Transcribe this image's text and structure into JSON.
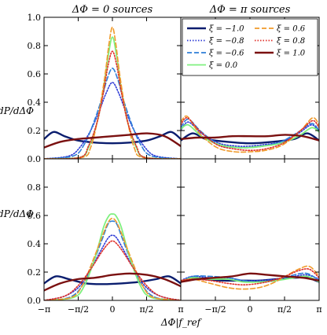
{
  "figure": {
    "titles": [
      "ΔΦ = 0 sources",
      "ΔΦ = π sources"
    ],
    "ylabel": "dP/dΔΦ",
    "xlabel": "ΔΦ|f_ref"
  },
  "chart_data": {
    "type": "line",
    "grid": false,
    "legend_placement": "top-right panel, upper area",
    "xlim": [
      -3.1416,
      3.1416
    ],
    "ylim": [
      0,
      1.0
    ],
    "x_ticks": [
      -3.1416,
      -1.5708,
      0,
      1.5708,
      3.1416
    ],
    "x_tick_labels": [
      "−π",
      "−π/2",
      "0",
      "π/2",
      "π"
    ],
    "y_ticks": [
      0,
      0.2,
      0.4,
      0.6,
      0.8,
      1.0
    ],
    "y_tick_labels_top": [
      "0.0",
      "0.2",
      "0.4",
      "0.6",
      "0.8",
      "1.0"
    ],
    "y_tick_labels_bottom": [
      "0.0",
      "0.2",
      "0.4",
      "0.6",
      "0.8"
    ],
    "legend": [
      {
        "label": "ξ = −1.0",
        "color": "#0a1d6e",
        "style": "solid"
      },
      {
        "label": "ξ = −0.8",
        "color": "#2f3cd6",
        "style": "dotted"
      },
      {
        "label": "ξ = −0.6",
        "color": "#2f7fd8",
        "style": "dashed"
      },
      {
        "label": "ξ = 0.0",
        "color": "#7ff07f",
        "style": "solid"
      },
      {
        "label": "ξ = 0.6",
        "color": "#f09a2a",
        "style": "dashed"
      },
      {
        "label": "ξ = 0.8",
        "color": "#e0302a",
        "style": "dotted"
      },
      {
        "label": "ξ = 1.0",
        "color": "#7a1010",
        "style": "solid"
      }
    ],
    "panels": [
      {
        "name": "top-left",
        "title_index": 0,
        "series": [
          {
            "color": "#0a1d6e",
            "style": "solid",
            "width": 2.4,
            "x": [
              -3.14,
              -2.7,
              -2.2,
              -1.6,
              -0.8,
              0,
              0.8,
              1.6,
              2.2,
              2.7,
              3.14
            ],
            "y": [
              0.14,
              0.19,
              0.16,
              0.13,
              0.115,
              0.11,
              0.115,
              0.13,
              0.16,
              0.19,
              0.14
            ]
          },
          {
            "color": "#2f3cd6",
            "style": "dotted",
            "width": 1.6,
            "x": [
              -3.14,
              -2.0,
              -1.5,
              -1.0,
              -0.6,
              -0.3,
              0,
              0.3,
              0.6,
              1.0,
              1.5,
              2.0,
              3.14
            ],
            "y": [
              0.0,
              0.02,
              0.08,
              0.2,
              0.34,
              0.46,
              0.54,
              0.46,
              0.34,
              0.2,
              0.08,
              0.02,
              0.0
            ]
          },
          {
            "color": "#2f7fd8",
            "style": "dashed",
            "width": 1.6,
            "x": [
              -3.14,
              -1.8,
              -1.3,
              -0.9,
              -0.5,
              -0.25,
              0,
              0.25,
              0.5,
              0.9,
              1.3,
              1.8,
              3.14
            ],
            "y": [
              0.0,
              0.02,
              0.1,
              0.24,
              0.42,
              0.56,
              0.64,
              0.56,
              0.42,
              0.24,
              0.1,
              0.02,
              0.0
            ]
          },
          {
            "color": "#7ff07f",
            "style": "solid",
            "width": 1.8,
            "x": [
              -3.14,
              -1.5,
              -1.1,
              -0.7,
              -0.4,
              -0.2,
              0,
              0.2,
              0.4,
              0.7,
              1.1,
              1.5,
              3.14
            ],
            "y": [
              0.0,
              0.01,
              0.08,
              0.26,
              0.5,
              0.72,
              0.86,
              0.72,
              0.5,
              0.26,
              0.08,
              0.01,
              0.0
            ]
          },
          {
            "color": "#f09a2a",
            "style": "dashed",
            "width": 1.6,
            "x": [
              -3.14,
              -1.4,
              -1.0,
              -0.65,
              -0.35,
              -0.15,
              0,
              0.15,
              0.35,
              0.65,
              1.0,
              1.4,
              3.14
            ],
            "y": [
              0.0,
              0.01,
              0.08,
              0.3,
              0.58,
              0.82,
              0.93,
              0.82,
              0.58,
              0.3,
              0.08,
              0.01,
              0.0
            ]
          },
          {
            "color": "#e0302a",
            "style": "dotted",
            "width": 1.6,
            "x": [
              -3.14,
              -1.5,
              -1.1,
              -0.7,
              -0.4,
              -0.2,
              0,
              0.2,
              0.4,
              0.7,
              1.1,
              1.5,
              3.14
            ],
            "y": [
              0.0,
              0.01,
              0.09,
              0.26,
              0.48,
              0.66,
              0.76,
              0.66,
              0.48,
              0.26,
              0.09,
              0.01,
              0.0
            ]
          },
          {
            "color": "#7a1010",
            "style": "solid",
            "width": 2.4,
            "x": [
              -3.14,
              -2.4,
              -1.6,
              -0.8,
              0,
              0.8,
              1.6,
              2.4,
              3.14
            ],
            "y": [
              0.08,
              0.12,
              0.14,
              0.15,
              0.16,
              0.17,
              0.18,
              0.16,
              0.09
            ]
          }
        ]
      },
      {
        "name": "top-right",
        "title_index": 1,
        "series": [
          {
            "color": "#0a1d6e",
            "style": "solid",
            "width": 2.4,
            "x": [
              -3.14,
              -2.6,
              -2.0,
              -1.0,
              0,
              1.0,
              2.0,
              2.6,
              3.14
            ],
            "y": [
              0.13,
              0.18,
              0.14,
              0.12,
              0.11,
              0.12,
              0.14,
              0.18,
              0.13
            ]
          },
          {
            "color": "#2f3cd6",
            "style": "dotted",
            "width": 1.6,
            "x": [
              -3.14,
              -2.8,
              -2.2,
              -1.4,
              -0.6,
              0,
              0.6,
              1.4,
              2.2,
              2.8,
              3.14
            ],
            "y": [
              0.2,
              0.26,
              0.18,
              0.11,
              0.09,
              0.09,
              0.1,
              0.12,
              0.18,
              0.24,
              0.19
            ]
          },
          {
            "color": "#2f7fd8",
            "style": "dashed",
            "width": 1.6,
            "x": [
              -3.14,
              -2.8,
              -2.2,
              -1.4,
              -0.6,
              0,
              0.6,
              1.4,
              2.2,
              2.8,
              3.14
            ],
            "y": [
              0.22,
              0.28,
              0.19,
              0.1,
              0.08,
              0.08,
              0.09,
              0.12,
              0.19,
              0.25,
              0.2
            ]
          },
          {
            "color": "#7ff07f",
            "style": "solid",
            "width": 1.8,
            "x": [
              -3.14,
              -2.8,
              -2.2,
              -1.4,
              -0.6,
              0,
              0.6,
              1.4,
              2.2,
              2.8,
              3.14
            ],
            "y": [
              0.21,
              0.24,
              0.16,
              0.1,
              0.08,
              0.08,
              0.09,
              0.11,
              0.16,
              0.22,
              0.19
            ]
          },
          {
            "color": "#f09a2a",
            "style": "dashed",
            "width": 1.6,
            "x": [
              -3.14,
              -2.85,
              -2.3,
              -1.5,
              -0.7,
              0,
              0.7,
              1.5,
              2.3,
              2.85,
              3.14
            ],
            "y": [
              0.26,
              0.3,
              0.18,
              0.08,
              0.05,
              0.05,
              0.06,
              0.1,
              0.2,
              0.29,
              0.24
            ]
          },
          {
            "color": "#e0302a",
            "style": "dotted",
            "width": 1.6,
            "x": [
              -3.14,
              -2.85,
              -2.3,
              -1.5,
              -0.7,
              0,
              0.7,
              1.5,
              2.3,
              2.85,
              3.14
            ],
            "y": [
              0.24,
              0.29,
              0.2,
              0.1,
              0.07,
              0.06,
              0.07,
              0.11,
              0.2,
              0.27,
              0.22
            ]
          },
          {
            "color": "#7a1010",
            "style": "solid",
            "width": 2.4,
            "x": [
              -3.14,
              -2.4,
              -1.6,
              -0.8,
              0,
              0.8,
              1.6,
              2.4,
              3.14
            ],
            "y": [
              0.14,
              0.15,
              0.15,
              0.16,
              0.16,
              0.16,
              0.17,
              0.16,
              0.13
            ]
          }
        ]
      },
      {
        "name": "bottom-left",
        "title_index": -1,
        "series": [
          {
            "color": "#0a1d6e",
            "style": "solid",
            "width": 2.4,
            "x": [
              -3.14,
              -2.6,
              -2.0,
              -1.2,
              -0.4,
              0.4,
              1.2,
              2.0,
              2.6,
              3.14
            ],
            "y": [
              0.12,
              0.17,
              0.15,
              0.12,
              0.115,
              0.12,
              0.13,
              0.15,
              0.17,
              0.12
            ]
          },
          {
            "color": "#2f3cd6",
            "style": "dotted",
            "width": 1.6,
            "x": [
              -3.14,
              -2.2,
              -1.5,
              -1.0,
              -0.5,
              -0.2,
              0,
              0.2,
              0.5,
              1.0,
              1.5,
              2.2,
              3.14
            ],
            "y": [
              0.0,
              0.03,
              0.1,
              0.22,
              0.36,
              0.44,
              0.46,
              0.44,
              0.36,
              0.22,
              0.1,
              0.03,
              0.0
            ]
          },
          {
            "color": "#2f7fd8",
            "style": "dashed",
            "width": 1.6,
            "x": [
              -3.14,
              -2.0,
              -1.4,
              -0.9,
              -0.45,
              -0.2,
              0,
              0.2,
              0.45,
              0.9,
              1.4,
              2.0,
              3.14
            ],
            "y": [
              0.0,
              0.02,
              0.1,
              0.26,
              0.44,
              0.54,
              0.56,
              0.54,
              0.44,
              0.26,
              0.1,
              0.02,
              0.0
            ]
          },
          {
            "color": "#7ff07f",
            "style": "solid",
            "width": 1.8,
            "x": [
              -3.14,
              -1.8,
              -1.3,
              -0.8,
              -0.4,
              -0.15,
              0,
              0.15,
              0.4,
              0.8,
              1.3,
              1.8,
              3.14
            ],
            "y": [
              0.0,
              0.02,
              0.1,
              0.3,
              0.52,
              0.6,
              0.61,
              0.6,
              0.52,
              0.3,
              0.1,
              0.02,
              0.0
            ]
          },
          {
            "color": "#f09a2a",
            "style": "dashed",
            "width": 1.6,
            "x": [
              -3.14,
              -1.9,
              -1.4,
              -0.9,
              -0.45,
              -0.2,
              0,
              0.2,
              0.45,
              0.9,
              1.4,
              1.9,
              3.14
            ],
            "y": [
              0.0,
              0.02,
              0.1,
              0.28,
              0.46,
              0.55,
              0.58,
              0.55,
              0.46,
              0.28,
              0.1,
              0.02,
              0.0
            ]
          },
          {
            "color": "#e0302a",
            "style": "dotted",
            "width": 1.6,
            "x": [
              -3.14,
              -2.2,
              -1.6,
              -1.0,
              -0.5,
              -0.2,
              0,
              0.2,
              0.5,
              1.0,
              1.6,
              2.2,
              3.14
            ],
            "y": [
              0.0,
              0.03,
              0.1,
              0.22,
              0.34,
              0.4,
              0.42,
              0.4,
              0.34,
              0.22,
              0.1,
              0.03,
              0.0
            ]
          },
          {
            "color": "#7a1010",
            "style": "solid",
            "width": 2.4,
            "x": [
              -3.14,
              -2.4,
              -1.6,
              -0.8,
              0,
              0.8,
              1.6,
              2.4,
              3.14
            ],
            "y": [
              0.07,
              0.12,
              0.15,
              0.16,
              0.18,
              0.19,
              0.18,
              0.15,
              0.1
            ]
          }
        ]
      },
      {
        "name": "bottom-right",
        "title_index": -1,
        "series": [
          {
            "color": "#0a1d6e",
            "style": "solid",
            "width": 2.4,
            "x": [
              -3.14,
              -2.6,
              -2.0,
              -1.2,
              -0.4,
              0.4,
              1.2,
              2.0,
              2.6,
              3.14
            ],
            "y": [
              0.13,
              0.16,
              0.15,
              0.14,
              0.14,
              0.14,
              0.15,
              0.16,
              0.16,
              0.13
            ]
          },
          {
            "color": "#2f3cd6",
            "style": "dotted",
            "width": 1.6,
            "x": [
              -3.14,
              -2.6,
              -1.8,
              -1.0,
              -0.3,
              0.4,
              1.2,
              2.0,
              2.6,
              3.14
            ],
            "y": [
              0.14,
              0.17,
              0.16,
              0.16,
              0.14,
              0.14,
              0.15,
              0.17,
              0.18,
              0.15
            ]
          },
          {
            "color": "#2f7fd8",
            "style": "dashed",
            "width": 1.6,
            "x": [
              -3.14,
              -2.6,
              -1.8,
              -1.0,
              -0.3,
              0.4,
              1.2,
              2.0,
              2.6,
              3.14
            ],
            "y": [
              0.13,
              0.17,
              0.17,
              0.16,
              0.14,
              0.13,
              0.14,
              0.18,
              0.19,
              0.14
            ]
          },
          {
            "color": "#7ff07f",
            "style": "solid",
            "width": 1.8,
            "x": [
              -3.14,
              -2.6,
              -1.8,
              -1.0,
              -0.3,
              0.4,
              1.2,
              2.0,
              2.6,
              3.14
            ],
            "y": [
              0.13,
              0.16,
              0.15,
              0.15,
              0.13,
              0.13,
              0.14,
              0.16,
              0.17,
              0.13
            ]
          },
          {
            "color": "#f09a2a",
            "style": "dashed",
            "width": 1.6,
            "x": [
              -3.14,
              -2.6,
              -1.8,
              -1.0,
              -0.3,
              0.4,
              1.0,
              1.6,
              2.2,
              2.7,
              3.14
            ],
            "y": [
              0.14,
              0.15,
              0.12,
              0.09,
              0.08,
              0.09,
              0.12,
              0.17,
              0.22,
              0.24,
              0.17
            ]
          },
          {
            "color": "#e0302a",
            "style": "dotted",
            "width": 1.6,
            "x": [
              -3.14,
              -2.6,
              -1.8,
              -1.0,
              -0.3,
              0.4,
              1.0,
              1.6,
              2.2,
              2.7,
              3.14
            ],
            "y": [
              0.14,
              0.15,
              0.14,
              0.12,
              0.11,
              0.12,
              0.14,
              0.17,
              0.21,
              0.22,
              0.16
            ]
          },
          {
            "color": "#7a1010",
            "style": "solid",
            "width": 2.4,
            "x": [
              -3.14,
              -2.4,
              -1.6,
              -0.8,
              0,
              0.8,
              1.6,
              2.4,
              3.14
            ],
            "y": [
              0.13,
              0.15,
              0.16,
              0.17,
              0.19,
              0.18,
              0.17,
              0.16,
              0.14
            ]
          }
        ]
      }
    ]
  }
}
